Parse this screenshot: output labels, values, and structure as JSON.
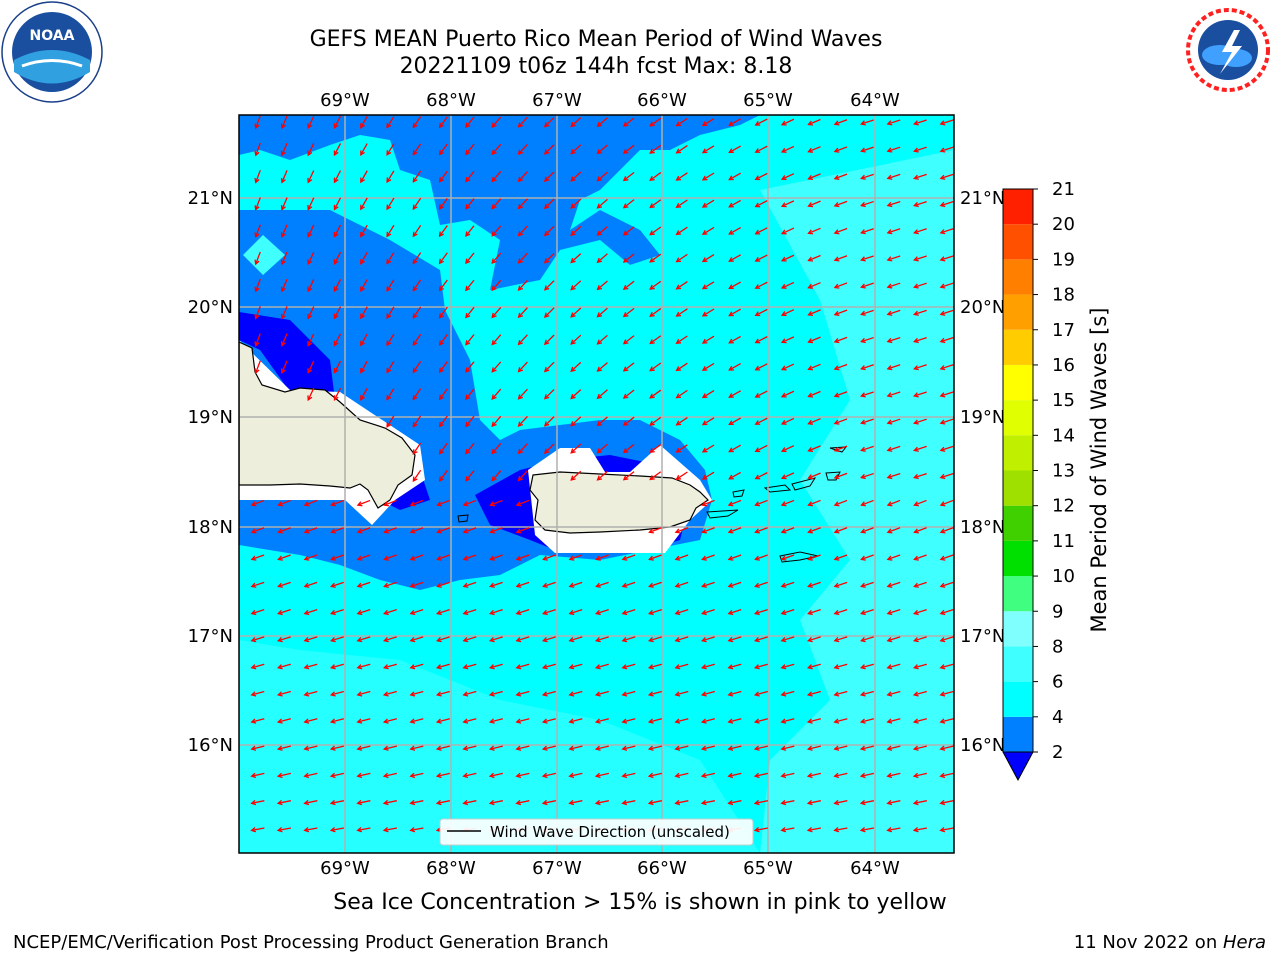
{
  "header": {
    "title_line1": "GEFS MEAN Puerto Rico Mean Period of Wind Waves",
    "title_line2": "20221109 t06z 144h fcst   Max: 8.18"
  },
  "logos": {
    "left": "noaa-logo",
    "left_text": "NOAA",
    "left_ring_text": "NATIONAL OCEANIC AND ATMOSPHERIC ADMINISTRATION · U.S. DEPARTMENT OF COMMERCE",
    "right": "nws-logo",
    "right_ring_text": "NATIONAL WEATHER SERVICE"
  },
  "map": {
    "lon_labels": [
      "69°W",
      "68°W",
      "67°W",
      "66°W",
      "65°W",
      "64°W"
    ],
    "lat_labels": [
      "21°N",
      "20°N",
      "19°N",
      "18°N",
      "17°N",
      "16°N"
    ],
    "legend_label": "Wind Wave Direction (unscaled)",
    "colors": {
      "ocean_light": "#00ffff",
      "ocean_lighter": "#40ffff",
      "ocean_mid": "#0080ff",
      "ocean_dark": "#0000ff",
      "land": "#eeeedd",
      "arrows": "#ff0000",
      "grid": "#b0b0b0"
    }
  },
  "colorbar": {
    "label": "Mean Period of Wind Waves [s]",
    "ticks": [
      "2",
      "4",
      "6",
      "8",
      "9",
      "10",
      "11",
      "12",
      "13",
      "14",
      "15",
      "16",
      "17",
      "18",
      "19",
      "20",
      "21"
    ],
    "colors": [
      "#0080ff",
      "#00ffff",
      "#40ffff",
      "#80ffff",
      "#40ff80",
      "#00e000",
      "#40d000",
      "#a0e000",
      "#c0f000",
      "#e0ff00",
      "#ffff00",
      "#ffcc00",
      "#ffa000",
      "#ff8000",
      "#ff5000",
      "#ff2000"
    ],
    "extend_color": "#0000ff"
  },
  "footer": {
    "sea_ice_note": "Sea Ice Concentration > 15% is shown in pink to yellow",
    "left": "NCEP/EMC/Verification Post Processing Product Generation Branch",
    "right_date": "11 Nov 2022 on ",
    "right_host": "Hera"
  }
}
